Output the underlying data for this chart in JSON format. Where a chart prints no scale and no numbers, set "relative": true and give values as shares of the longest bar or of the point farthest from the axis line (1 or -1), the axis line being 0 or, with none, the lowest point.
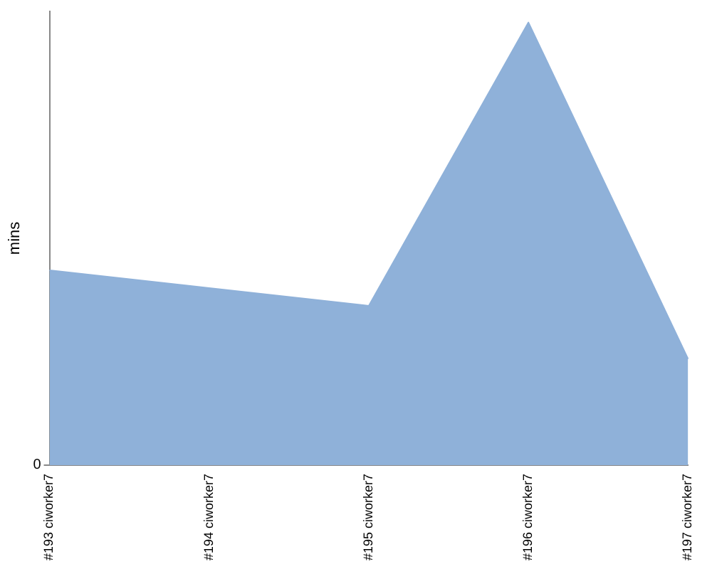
{
  "chart_data": {
    "type": "area",
    "ylabel": "mins",
    "categories": [
      "#193 ciworker7",
      "#194 ciworker7",
      "#195 ciworker7",
      "#196 ciworker7",
      "#197 ciworker7"
    ],
    "series": [
      {
        "color": "#8fb1d9",
        "values": [
          0.44,
          0.4,
          0.36,
          1,
          0.24
        ]
      }
    ],
    "relative": true,
    "annotations": [
      "0"
    ]
  }
}
